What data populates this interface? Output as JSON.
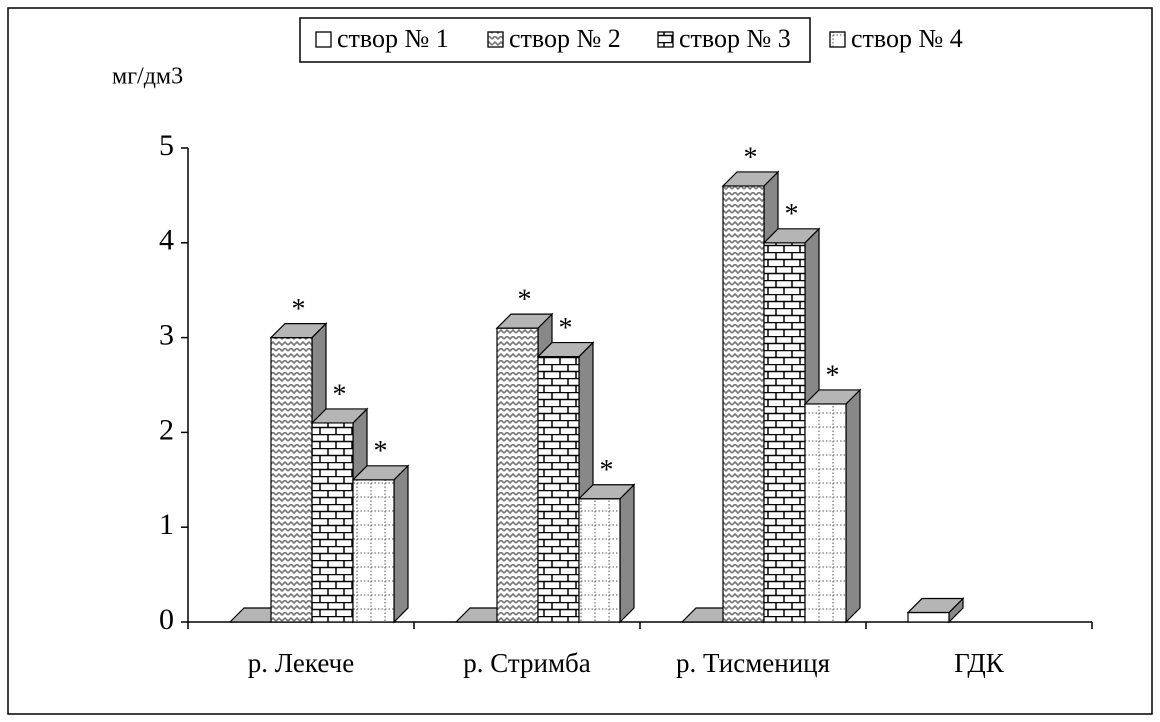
{
  "chart_data": {
    "type": "bar3d",
    "y_label": "мг/дм3",
    "categories": [
      "р. Лекече",
      "р. Стримба",
      "р. Тисмениця",
      "ГДК"
    ],
    "series": [
      {
        "name": "створ № 1",
        "color": "#ffffff",
        "pattern": "none",
        "values": [
          0,
          0,
          0,
          0.1
        ]
      },
      {
        "name": "створ № 2",
        "color": "#ffffff",
        "pattern": "zigzag",
        "values": [
          3.0,
          3.1,
          4.6,
          null
        ],
        "note_labels": [
          "*",
          "*",
          "*",
          null
        ]
      },
      {
        "name": "створ № 3",
        "color": "#ffffff",
        "pattern": "brick",
        "values": [
          2.1,
          2.8,
          4.0,
          null
        ],
        "note_labels": [
          "*",
          "*",
          "*",
          null
        ]
      },
      {
        "name": "створ № 4",
        "color": "#ffffff",
        "pattern": "dots",
        "values": [
          1.5,
          1.3,
          2.3,
          null
        ],
        "note_labels": [
          "*",
          "*",
          "*",
          null
        ]
      }
    ],
    "ylim": [
      0,
      5
    ],
    "yticks": [
      0,
      1,
      2,
      3,
      4,
      5
    ],
    "grid": false,
    "legend": "top"
  }
}
